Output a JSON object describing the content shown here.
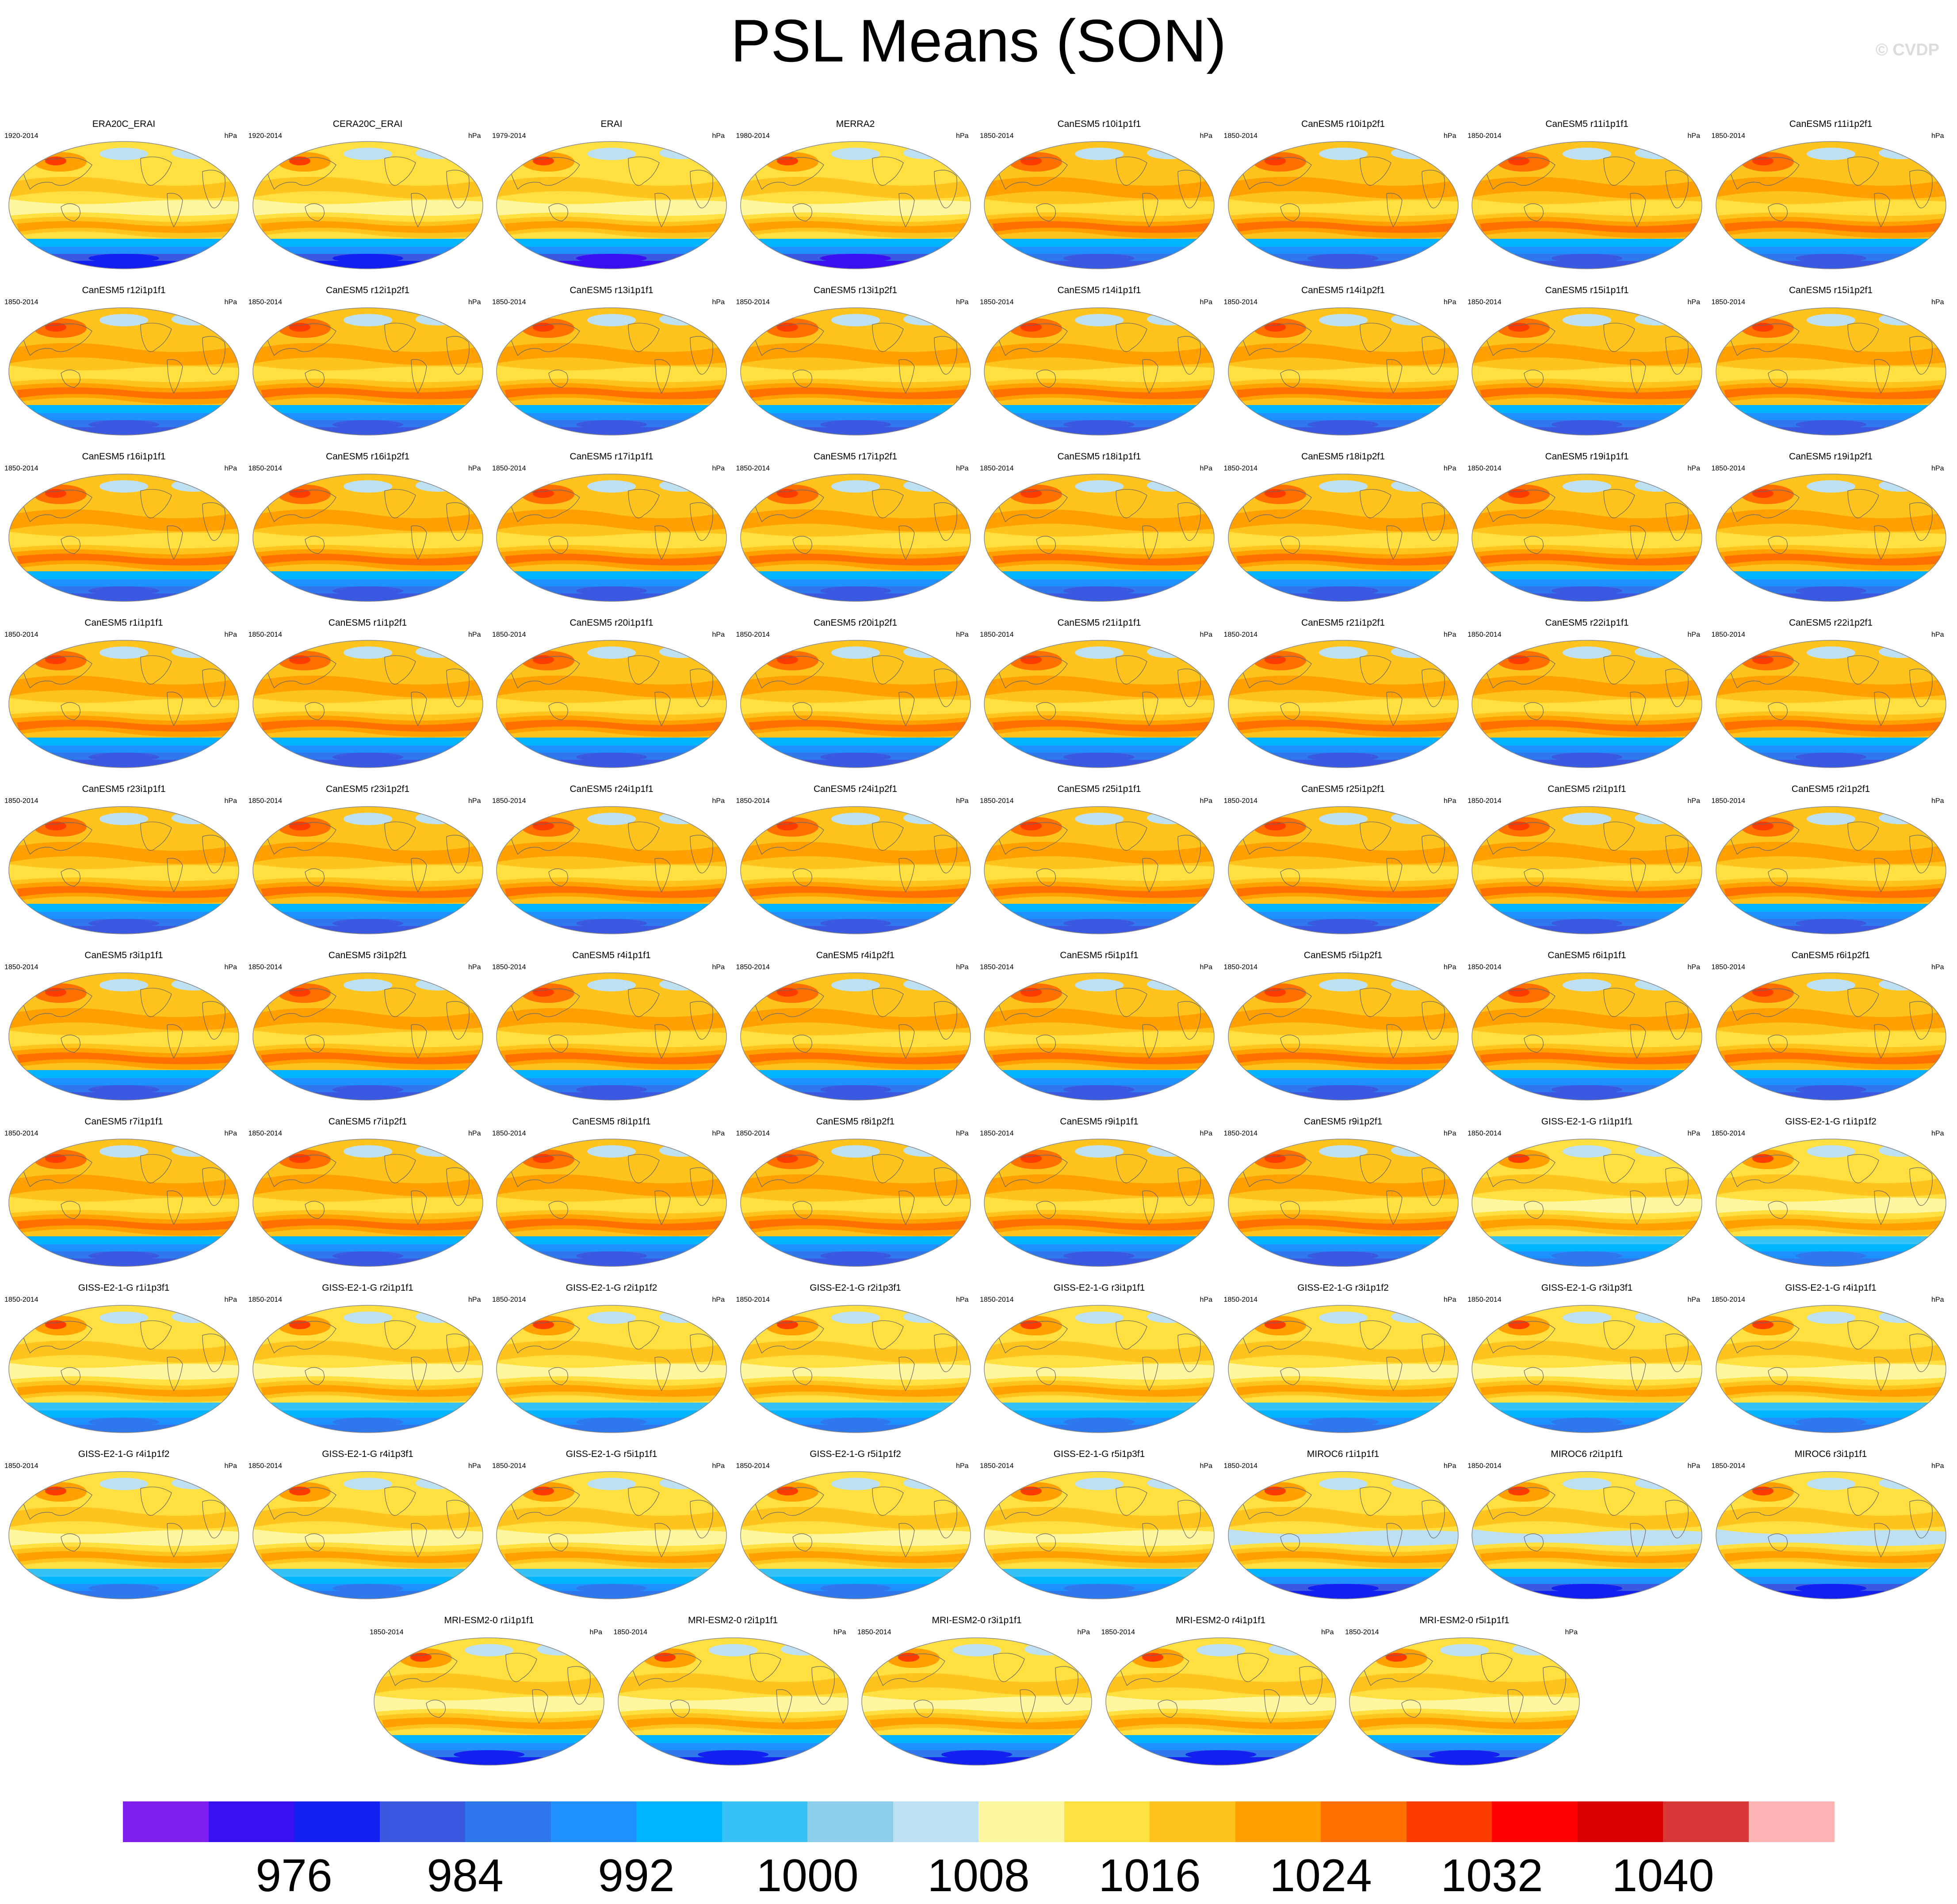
{
  "title": "PSL Means (SON)",
  "copyright": "© CVDP",
  "units": "hPa",
  "panels": [
    {
      "title": "ERA20C_ERAI",
      "years": "1920-2014",
      "type": "obs20c"
    },
    {
      "title": "CERA20C_ERAI",
      "years": "1920-2014",
      "type": "obs20c"
    },
    {
      "title": "ERAI",
      "years": "1979-2014",
      "type": "obs"
    },
    {
      "title": "MERRA2",
      "years": "1980-2014",
      "type": "obs"
    },
    {
      "title": "CanESM5 r10i1p1f1",
      "years": "1850-2014",
      "type": "canesm"
    },
    {
      "title": "CanESM5 r10i1p2f1",
      "years": "1850-2014",
      "type": "canesm"
    },
    {
      "title": "CanESM5 r11i1p1f1",
      "years": "1850-2014",
      "type": "canesm"
    },
    {
      "title": "CanESM5 r11i1p2f1",
      "years": "1850-2014",
      "type": "canesm"
    },
    {
      "title": "CanESM5 r12i1p1f1",
      "years": "1850-2014",
      "type": "canesm"
    },
    {
      "title": "CanESM5 r12i1p2f1",
      "years": "1850-2014",
      "type": "canesm"
    },
    {
      "title": "CanESM5 r13i1p1f1",
      "years": "1850-2014",
      "type": "canesm"
    },
    {
      "title": "CanESM5 r13i1p2f1",
      "years": "1850-2014",
      "type": "canesm"
    },
    {
      "title": "CanESM5 r14i1p1f1",
      "years": "1850-2014",
      "type": "canesm"
    },
    {
      "title": "CanESM5 r14i1p2f1",
      "years": "1850-2014",
      "type": "canesm"
    },
    {
      "title": "CanESM5 r15i1p1f1",
      "years": "1850-2014",
      "type": "canesm"
    },
    {
      "title": "CanESM5 r15i1p2f1",
      "years": "1850-2014",
      "type": "canesm"
    },
    {
      "title": "CanESM5 r16i1p1f1",
      "years": "1850-2014",
      "type": "canesm"
    },
    {
      "title": "CanESM5 r16i1p2f1",
      "years": "1850-2014",
      "type": "canesm"
    },
    {
      "title": "CanESM5 r17i1p1f1",
      "years": "1850-2014",
      "type": "canesm"
    },
    {
      "title": "CanESM5 r17i1p2f1",
      "years": "1850-2014",
      "type": "canesm"
    },
    {
      "title": "CanESM5 r18i1p1f1",
      "years": "1850-2014",
      "type": "canesm"
    },
    {
      "title": "CanESM5 r18i1p2f1",
      "years": "1850-2014",
      "type": "canesm"
    },
    {
      "title": "CanESM5 r19i1p1f1",
      "years": "1850-2014",
      "type": "canesm"
    },
    {
      "title": "CanESM5 r19i1p2f1",
      "years": "1850-2014",
      "type": "canesm"
    },
    {
      "title": "CanESM5 r1i1p1f1",
      "years": "1850-2014",
      "type": "canesm"
    },
    {
      "title": "CanESM5 r1i1p2f1",
      "years": "1850-2014",
      "type": "canesm"
    },
    {
      "title": "CanESM5 r20i1p1f1",
      "years": "1850-2014",
      "type": "canesm"
    },
    {
      "title": "CanESM5 r20i1p2f1",
      "years": "1850-2014",
      "type": "canesm"
    },
    {
      "title": "CanESM5 r21i1p1f1",
      "years": "1850-2014",
      "type": "canesm"
    },
    {
      "title": "CanESM5 r21i1p2f1",
      "years": "1850-2014",
      "type": "canesm"
    },
    {
      "title": "CanESM5 r22i1p1f1",
      "years": "1850-2014",
      "type": "canesm"
    },
    {
      "title": "CanESM5 r22i1p2f1",
      "years": "1850-2014",
      "type": "canesm"
    },
    {
      "title": "CanESM5 r23i1p1f1",
      "years": "1850-2014",
      "type": "canesm"
    },
    {
      "title": "CanESM5 r23i1p2f1",
      "years": "1850-2014",
      "type": "canesm"
    },
    {
      "title": "CanESM5 r24i1p1f1",
      "years": "1850-2014",
      "type": "canesm"
    },
    {
      "title": "CanESM5 r24i1p2f1",
      "years": "1850-2014",
      "type": "canesm"
    },
    {
      "title": "CanESM5 r25i1p1f1",
      "years": "1850-2014",
      "type": "canesm"
    },
    {
      "title": "CanESM5 r25i1p2f1",
      "years": "1850-2014",
      "type": "canesm"
    },
    {
      "title": "CanESM5 r2i1p1f1",
      "years": "1850-2014",
      "type": "canesm"
    },
    {
      "title": "CanESM5 r2i1p2f1",
      "years": "1850-2014",
      "type": "canesm"
    },
    {
      "title": "CanESM5 r3i1p1f1",
      "years": "1850-2014",
      "type": "canesm"
    },
    {
      "title": "CanESM5 r3i1p2f1",
      "years": "1850-2014",
      "type": "canesm"
    },
    {
      "title": "CanESM5 r4i1p1f1",
      "years": "1850-2014",
      "type": "canesm"
    },
    {
      "title": "CanESM5 r4i1p2f1",
      "years": "1850-2014",
      "type": "canesm"
    },
    {
      "title": "CanESM5 r5i1p1f1",
      "years": "1850-2014",
      "type": "canesm"
    },
    {
      "title": "CanESM5 r5i1p2f1",
      "years": "1850-2014",
      "type": "canesm"
    },
    {
      "title": "CanESM5 r6i1p1f1",
      "years": "1850-2014",
      "type": "canesm"
    },
    {
      "title": "CanESM5 r6i1p2f1",
      "years": "1850-2014",
      "type": "canesm"
    },
    {
      "title": "CanESM5 r7i1p1f1",
      "years": "1850-2014",
      "type": "canesm"
    },
    {
      "title": "CanESM5 r7i1p2f1",
      "years": "1850-2014",
      "type": "canesm"
    },
    {
      "title": "CanESM5 r8i1p1f1",
      "years": "1850-2014",
      "type": "canesm"
    },
    {
      "title": "CanESM5 r8i1p2f1",
      "years": "1850-2014",
      "type": "canesm"
    },
    {
      "title": "CanESM5 r9i1p1f1",
      "years": "1850-2014",
      "type": "canesm"
    },
    {
      "title": "CanESM5 r9i1p2f1",
      "years": "1850-2014",
      "type": "canesm"
    },
    {
      "title": "GISS-E2-1-G r1i1p1f1",
      "years": "1850-2014",
      "type": "giss"
    },
    {
      "title": "GISS-E2-1-G r1i1p1f2",
      "years": "1850-2014",
      "type": "giss"
    },
    {
      "title": "GISS-E2-1-G r1i1p3f1",
      "years": "1850-2014",
      "type": "giss"
    },
    {
      "title": "GISS-E2-1-G r2i1p1f1",
      "years": "1850-2014",
      "type": "giss"
    },
    {
      "title": "GISS-E2-1-G r2i1p1f2",
      "years": "1850-2014",
      "type": "giss"
    },
    {
      "title": "GISS-E2-1-G r2i1p3f1",
      "years": "1850-2014",
      "type": "giss"
    },
    {
      "title": "GISS-E2-1-G r3i1p1f1",
      "years": "1850-2014",
      "type": "giss"
    },
    {
      "title": "GISS-E2-1-G r3i1p1f2",
      "years": "1850-2014",
      "type": "giss"
    },
    {
      "title": "GISS-E2-1-G r3i1p3f1",
      "years": "1850-2014",
      "type": "giss"
    },
    {
      "title": "GISS-E2-1-G r4i1p1f1",
      "years": "1850-2014",
      "type": "giss"
    },
    {
      "title": "GISS-E2-1-G r4i1p1f2",
      "years": "1850-2014",
      "type": "giss"
    },
    {
      "title": "GISS-E2-1-G r4i1p3f1",
      "years": "1850-2014",
      "type": "giss"
    },
    {
      "title": "GISS-E2-1-G r5i1p1f1",
      "years": "1850-2014",
      "type": "giss"
    },
    {
      "title": "GISS-E2-1-G r5i1p1f2",
      "years": "1850-2014",
      "type": "giss"
    },
    {
      "title": "GISS-E2-1-G r5i1p3f1",
      "years": "1850-2014",
      "type": "giss"
    },
    {
      "title": "MIROC6 r1i1p1f1",
      "years": "1850-2014",
      "type": "miroc"
    },
    {
      "title": "MIROC6 r2i1p1f1",
      "years": "1850-2014",
      "type": "miroc"
    },
    {
      "title": "MIROC6 r3i1p1f1",
      "years": "1850-2014",
      "type": "miroc"
    },
    {
      "title": "MRI-ESM2-0 r1i1p1f1",
      "years": "1850-2014",
      "type": "mri"
    },
    {
      "title": "MRI-ESM2-0 r2i1p1f1",
      "years": "1850-2014",
      "type": "mri"
    },
    {
      "title": "MRI-ESM2-0 r3i1p1f1",
      "years": "1850-2014",
      "type": "mri"
    },
    {
      "title": "MRI-ESM2-0 r4i1p1f1",
      "years": "1850-2014",
      "type": "mri"
    },
    {
      "title": "MRI-ESM2-0 r5i1p1f1",
      "years": "1850-2014",
      "type": "mri"
    }
  ],
  "colorbar": {
    "colors": [
      "#7f1ff0",
      "#3a10f0",
      "#1420f0",
      "#3b58e0",
      "#2e78ec",
      "#1e90ff",
      "#00b4ff",
      "#36c2f5",
      "#8ccdeb",
      "#bde1f2",
      "#fff6a0",
      "#ffe040",
      "#ffc31e",
      "#ff9f00",
      "#ff7000",
      "#ff3c00",
      "#ff0000",
      "#d80000",
      "#d83838",
      "#ffb4b4"
    ],
    "labels": [
      "976",
      "984",
      "992",
      "1000",
      "1008",
      "1016",
      "1024",
      "1032",
      "1040"
    ]
  }
}
